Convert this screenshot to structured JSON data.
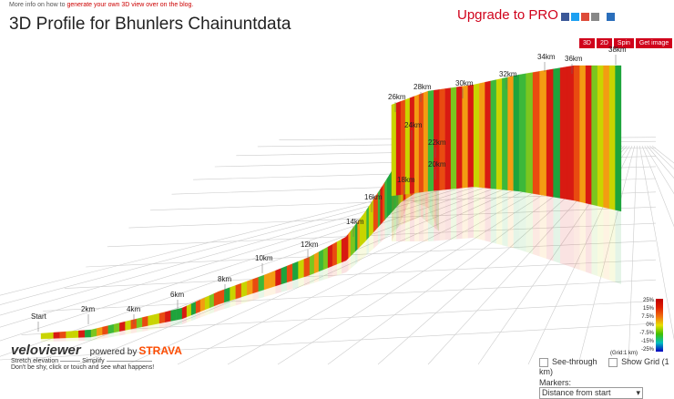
{
  "header": {
    "info_prefix": "More info on how to",
    "info_link": "generate your own 3D view over on the blog.",
    "title": "3D Profile for Bhunlers Chainuntdata",
    "upgrade": "Upgrade to PRO"
  },
  "buttons": [
    "3D",
    "2D",
    "Spin",
    "Get image"
  ],
  "markers": [
    "Start",
    "2km",
    "4km",
    "6km",
    "8km",
    "10km",
    "12km",
    "14km",
    "16km",
    "18km",
    "20km",
    "22km",
    "24km",
    "26km",
    "28km",
    "30km",
    "32km",
    "34km",
    "36km",
    "38km"
  ],
  "legend": {
    "labels": [
      "25%",
      "15%",
      "7.5%",
      "0%",
      "-7.5%",
      "-15%",
      "-25%"
    ],
    "grid_note": "(Grid:1 km)"
  },
  "footer": {
    "logo": "veloviewer",
    "powered_by": "powered by",
    "strava": "STRAVA",
    "stretch": "Stretch elevation",
    "simplify": "Simplify",
    "hint": "Don't be shy, click or touch and see what happens!"
  },
  "controls": {
    "see_through": "See-through",
    "show_grid": "Show Grid (1 km)",
    "markers_label": "Markers:",
    "markers_select": "Distance from start"
  }
}
